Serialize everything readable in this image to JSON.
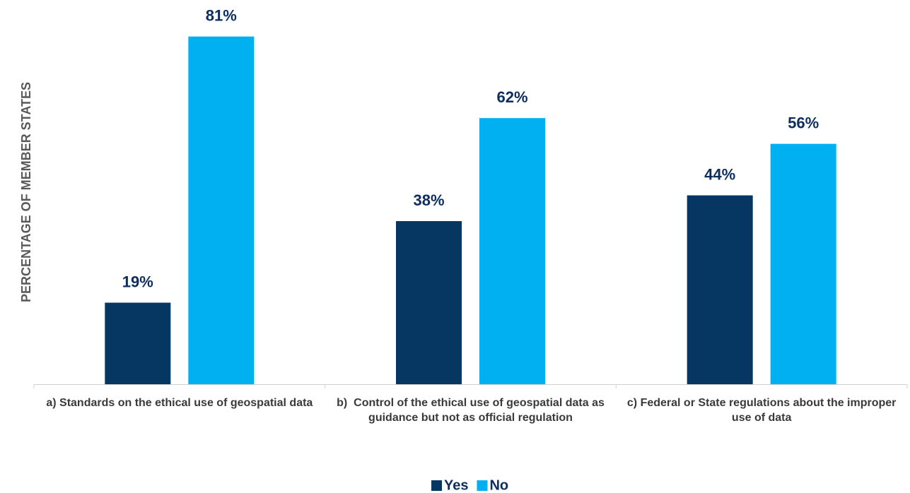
{
  "chart_data": {
    "type": "bar",
    "ylabel": "PERCENTAGE OF MEMBER STATES",
    "categories": [
      "a) Standards on the ethical use of geospatial data",
      "b)  Control of the ethical use of geospatial data as guidance but not as official regulation",
      "c) Federal or State regulations about the improper use of data"
    ],
    "series": [
      {
        "name": "Yes",
        "color": "#063763",
        "values": [
          19,
          38,
          44
        ],
        "value_labels": [
          "19%",
          "38%",
          "44%"
        ]
      },
      {
        "name": "No",
        "color": "#00b0f0",
        "values": [
          81,
          62,
          56
        ],
        "value_labels": [
          "81%",
          "62%",
          "56%"
        ]
      }
    ],
    "ylim": [
      0,
      90
    ],
    "legend": "bottom"
  }
}
